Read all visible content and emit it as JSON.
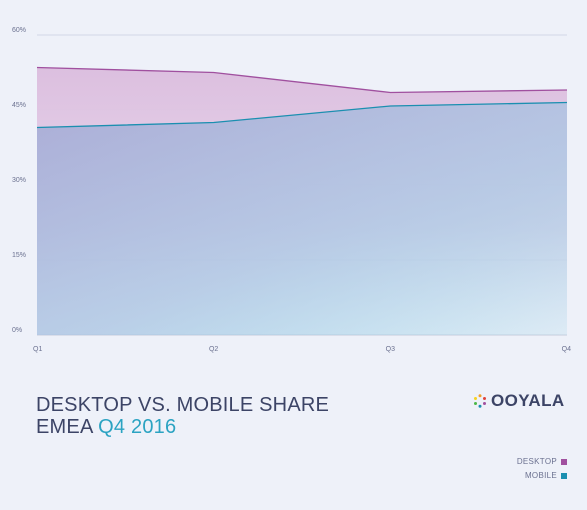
{
  "chart_data": {
    "type": "area",
    "categories": [
      "Q1",
      "Q2",
      "Q3",
      "Q4"
    ],
    "y_ticks": [
      "0%",
      "15%",
      "30%",
      "45%",
      "60%"
    ],
    "ylim": [
      0,
      60
    ],
    "grid": true,
    "legend_position": "bottom-right",
    "series": [
      {
        "name": "DESKTOP",
        "values": [
          53.5,
          52.5,
          48.5,
          49
        ],
        "color": "#a0509f"
      },
      {
        "name": "MOBILE",
        "values": [
          41.5,
          42.5,
          45.8,
          46.5
        ],
        "color": "#1b8fb0"
      }
    ]
  },
  "title": {
    "line1": "DESKTOP VS. MOBILE SHARE",
    "line2_prefix": "EMEA",
    "line2_accent": "Q4 2016"
  },
  "logo": {
    "text": "OOYALA",
    "icon": "ooyala-dots-icon"
  },
  "legend": {
    "items": [
      {
        "label": "DESKTOP",
        "color": "#a0509f"
      },
      {
        "label": "MOBILE",
        "color": "#1b8fb0"
      }
    ]
  }
}
